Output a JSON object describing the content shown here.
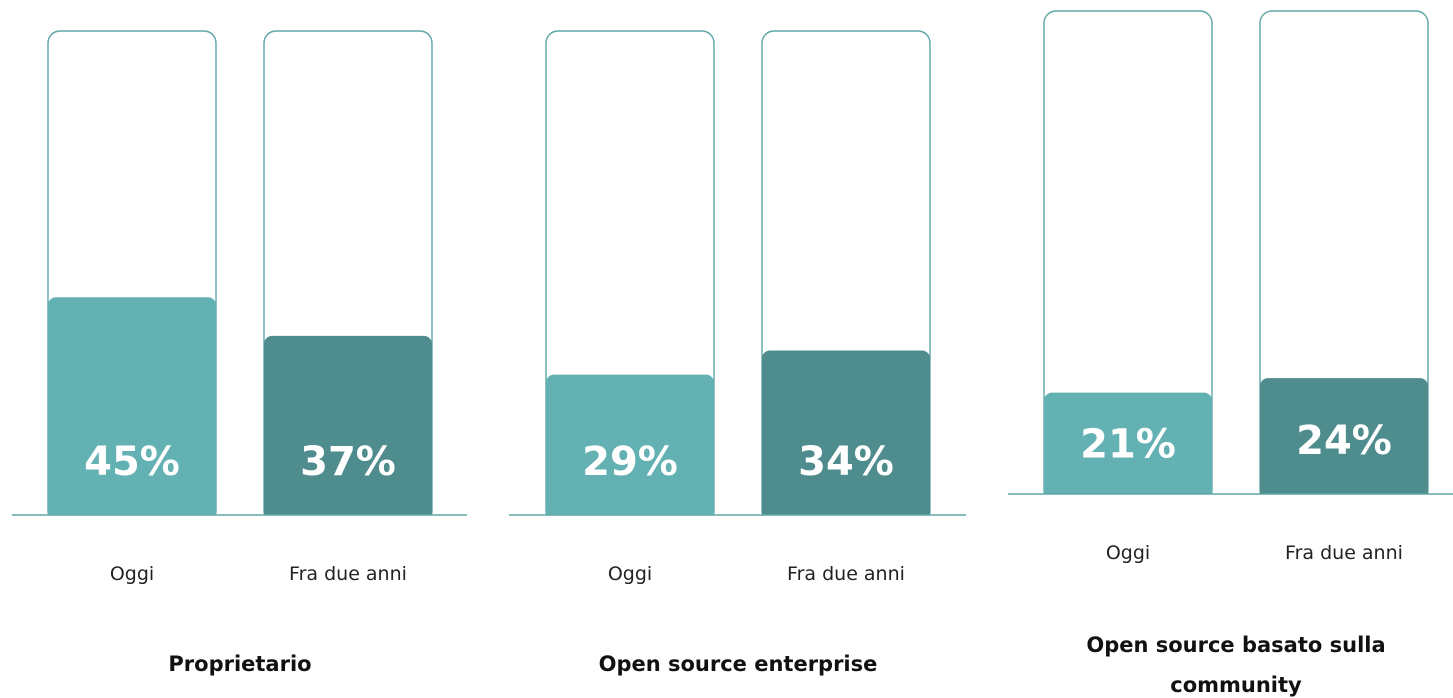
{
  "chart_data": [
    {
      "type": "bar",
      "title": "Proprietario",
      "categories": [
        "Oggi",
        "Fra due anni"
      ],
      "values": [
        45,
        37
      ],
      "value_labels": [
        "45%",
        "37%"
      ],
      "unit": "%",
      "ylim": [
        0,
        100
      ],
      "grid": false,
      "colors": [
        "#63b1b3",
        "#4f8c8e"
      ]
    },
    {
      "type": "bar",
      "title": "Open source enterprise",
      "categories": [
        "Oggi",
        "Fra due anni"
      ],
      "values": [
        29,
        34
      ],
      "value_labels": [
        "29%",
        "34%"
      ],
      "unit": "%",
      "ylim": [
        0,
        100
      ],
      "grid": false,
      "colors": [
        "#63b1b3",
        "#4f8c8e"
      ]
    },
    {
      "type": "bar",
      "title": "Open source basato sulla community",
      "categories": [
        "Oggi",
        "Fra due anni"
      ],
      "values": [
        21,
        24
      ],
      "value_labels": [
        "21%",
        "24%"
      ],
      "unit": "%",
      "ylim": [
        0,
        100
      ],
      "grid": false,
      "colors": [
        "#63b1b3",
        "#4f8c8e"
      ]
    }
  ],
  "colors": {
    "outline": "#5fa5a8",
    "baseline": "#5fa5a8",
    "today": "#63b1b3",
    "future": "#4f8c8e"
  }
}
